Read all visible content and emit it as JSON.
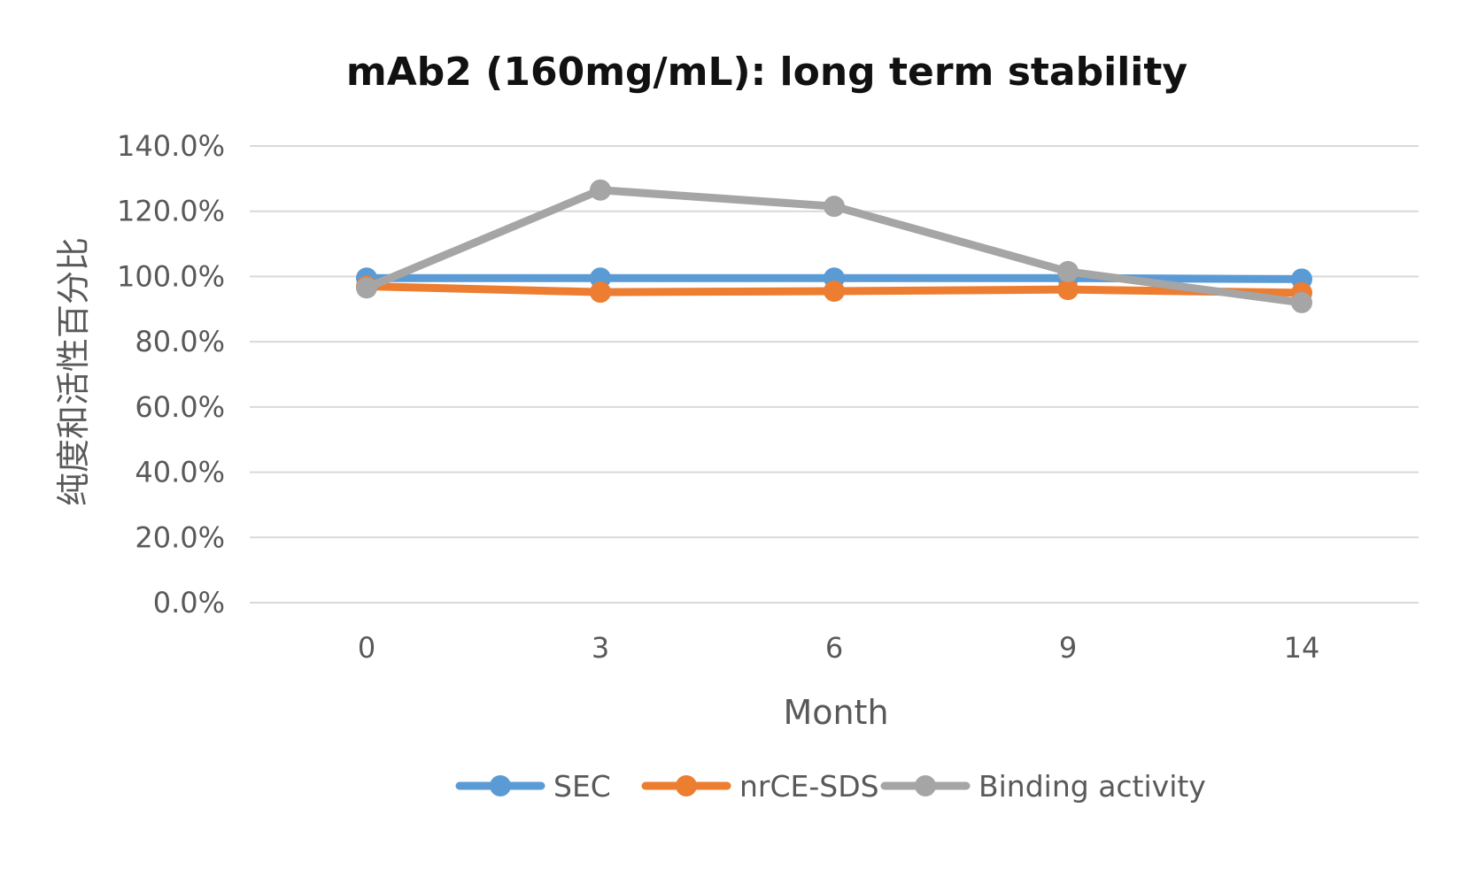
{
  "chart_data": {
    "type": "line",
    "title": "mAb2 (160mg/mL): long term stability",
    "xlabel": "Month",
    "ylabel": "纯度和活性百分比",
    "categories": [
      "0",
      "3",
      "6",
      "9",
      "14"
    ],
    "ylim": [
      0,
      140
    ],
    "yticks": [
      "0.0%",
      "20.0%",
      "40.0%",
      "60.0%",
      "80.0%",
      "100.0%",
      "120.0%",
      "140.0%"
    ],
    "grid": true,
    "legend_position": "bottom",
    "series": [
      {
        "name": "SEC",
        "color": "#5b9bd5",
        "values": [
          99.5,
          99.5,
          99.5,
          99.5,
          99.2
        ]
      },
      {
        "name": "nrCE-SDS",
        "color": "#ed7d31",
        "values": [
          97.0,
          95.2,
          95.5,
          96.0,
          95.0
        ]
      },
      {
        "name": "Binding activity",
        "color": "#a5a5a5",
        "values": [
          96.5,
          126.5,
          121.5,
          101.5,
          92.0
        ]
      }
    ]
  }
}
